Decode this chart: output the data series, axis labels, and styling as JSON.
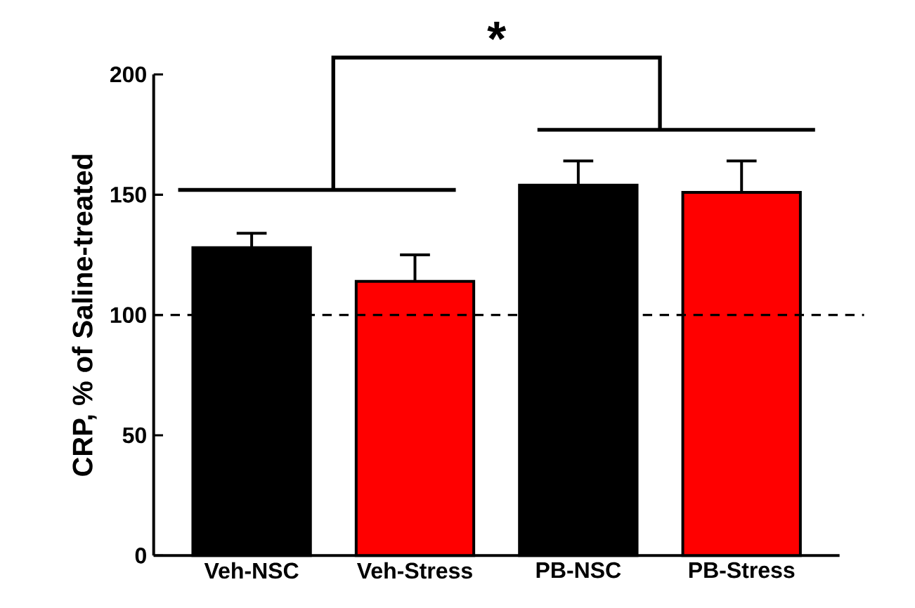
{
  "chart_data": {
    "type": "bar",
    "ylabel": "CRP, % of Saline-treated",
    "categories": [
      "Veh-NSC",
      "Veh-Stress",
      "PB-NSC",
      "PB-Stress"
    ],
    "values": [
      128,
      114,
      154,
      151
    ],
    "errors": [
      6,
      11,
      10,
      13
    ],
    "colors": [
      "#000000",
      "#ff0000",
      "#000000",
      "#ff0000"
    ],
    "ylim": [
      0,
      200
    ],
    "yticks": [
      0,
      50,
      100,
      150,
      200
    ],
    "ref_lines": [
      {
        "axis": "y",
        "value": 100,
        "line_style": "dashed"
      }
    ],
    "annotations": [
      "*"
    ]
  }
}
